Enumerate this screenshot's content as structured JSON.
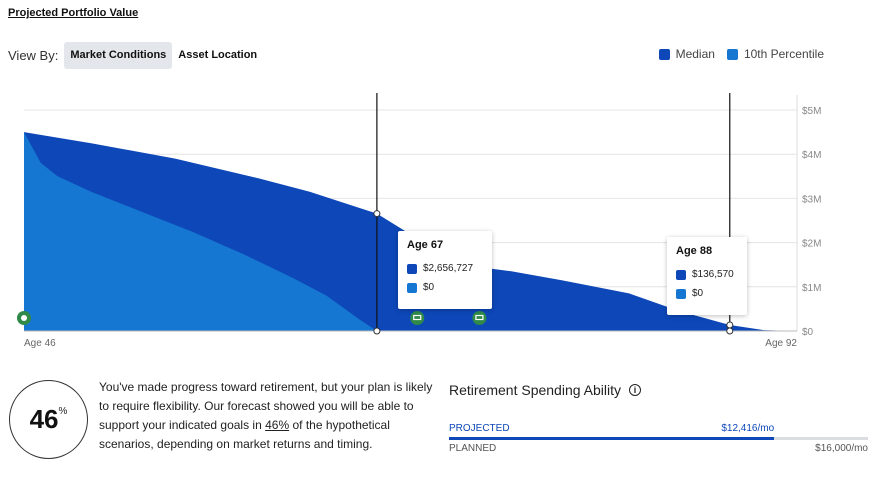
{
  "title": "Projected Portfolio Value",
  "view_by": {
    "label": "View By:",
    "options": [
      "Market Conditions",
      "Asset Location"
    ],
    "active": "Market Conditions"
  },
  "legend": [
    {
      "label": "Median",
      "color": "#0d47b8"
    },
    {
      "label": "10th Percentile",
      "color": "#1577d1"
    }
  ],
  "chart_data": {
    "type": "area",
    "x_min": 46,
    "x_max": 92,
    "x_start_label": "Age 46",
    "x_end_label": "Age 92",
    "y_ticks": [
      "$0",
      "$1M",
      "$2M",
      "$3M",
      "$4M",
      "$5M"
    ],
    "ylim": [
      0,
      5000000
    ],
    "grid": true,
    "series": [
      {
        "name": "Median",
        "color": "#0d47b8",
        "points": [
          [
            46,
            4500000
          ],
          [
            50,
            4250000
          ],
          [
            55,
            3900000
          ],
          [
            60,
            3450000
          ],
          [
            63,
            3150000
          ],
          [
            67,
            2656727
          ],
          [
            70,
            1950000
          ],
          [
            72,
            1500000
          ],
          [
            75,
            1350000
          ],
          [
            78,
            1150000
          ],
          [
            82,
            850000
          ],
          [
            85,
            450000
          ],
          [
            88,
            136570
          ],
          [
            90,
            20000
          ],
          [
            92,
            0
          ]
        ]
      },
      {
        "name": "10th Percentile",
        "color": "#1577d1",
        "points": [
          [
            46,
            4500000
          ],
          [
            47,
            3800000
          ],
          [
            48,
            3500000
          ],
          [
            50,
            3150000
          ],
          [
            53,
            2700000
          ],
          [
            56,
            2250000
          ],
          [
            59,
            1750000
          ],
          [
            62,
            1200000
          ],
          [
            64,
            800000
          ],
          [
            66,
            250000
          ],
          [
            67,
            0
          ],
          [
            92,
            0
          ]
        ]
      }
    ],
    "markers": [
      {
        "type": "piggy-bank",
        "age": 46
      },
      {
        "type": "cart",
        "age": 69.4
      },
      {
        "type": "cart",
        "age": 73.1
      }
    ],
    "tooltips": [
      {
        "title": "Age 67",
        "age": 67,
        "median": "$2,656,727",
        "p10": "$0"
      },
      {
        "title": "Age 88",
        "age": 88,
        "median": "$136,570",
        "p10": "$0"
      }
    ]
  },
  "summary": {
    "score": "46",
    "score_unit": "%",
    "message_1": "You've made progress toward retirement, but your plan is likely to require flexibility. Our forecast showed you will be able to support your indicated goals in ",
    "message_pct": "46%",
    "message_2": " of the hypothetical scenarios, depending on market returns and timing."
  },
  "spending": {
    "title": "Retirement Spending Ability",
    "projected_label": "PROJECTED",
    "projected_value": "$12,416/mo",
    "projected_fraction": 0.776,
    "planned_label": "PLANNED",
    "planned_value": "$16,000/mo",
    "projected_color": "#0d47b8",
    "planned_color": "#dcdde0"
  }
}
